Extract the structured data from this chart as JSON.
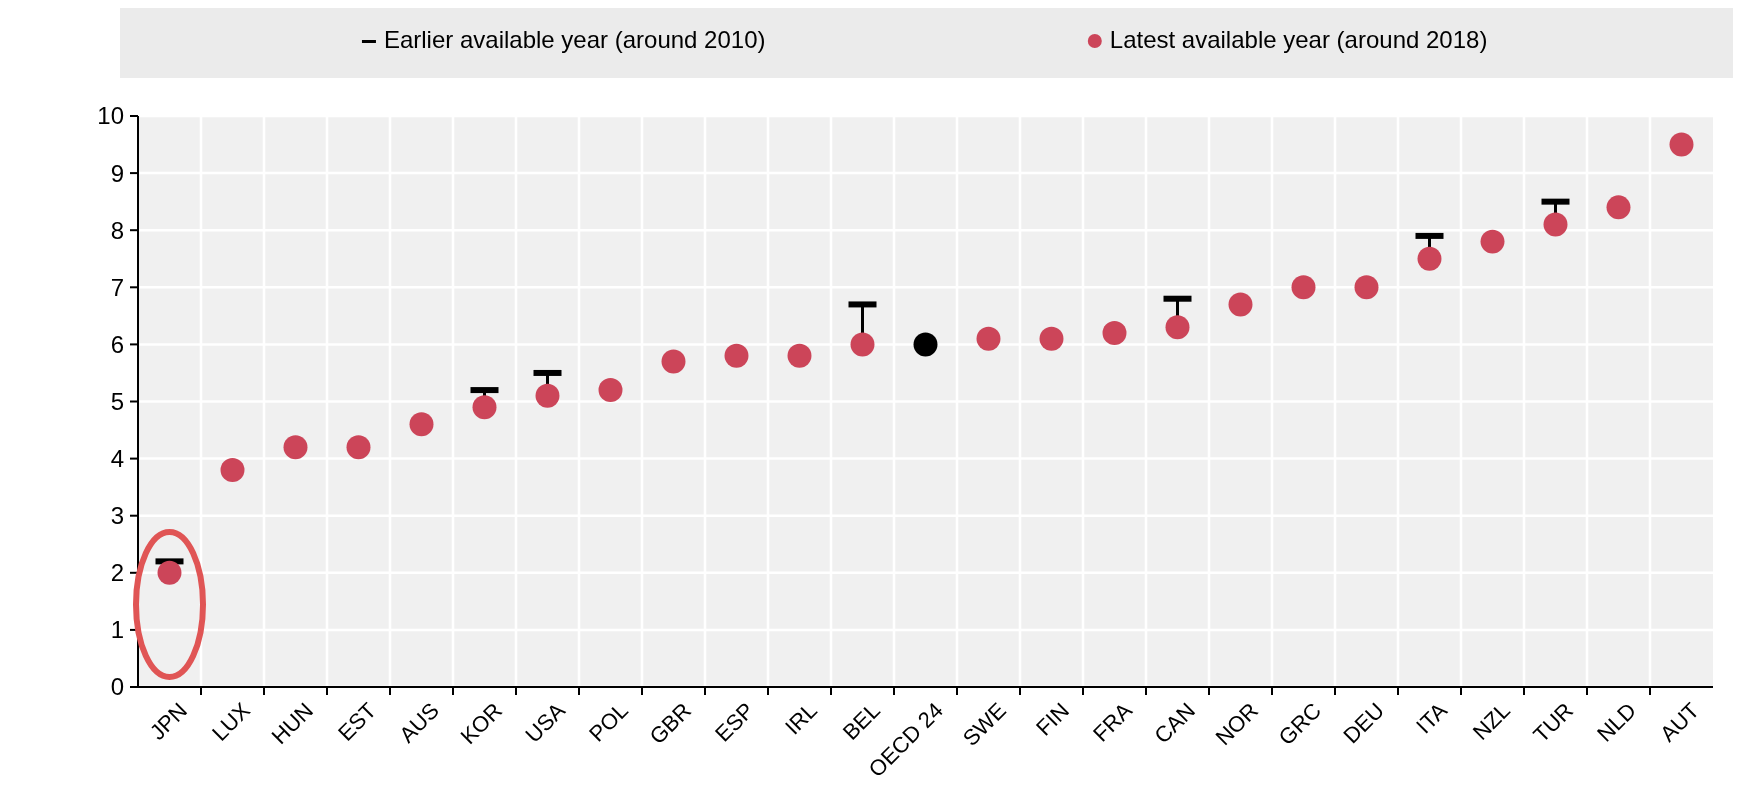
{
  "chart_data": {
    "type": "scatter",
    "categories": [
      "JPN",
      "LUX",
      "HUN",
      "EST",
      "AUS",
      "KOR",
      "USA",
      "POL",
      "GBR",
      "ESP",
      "IRL",
      "BEL",
      "OECD 24",
      "SWE",
      "FIN",
      "FRA",
      "CAN",
      "NOR",
      "GRC",
      "DEU",
      "ITA",
      "NZL",
      "TUR",
      "NLD",
      "AUT"
    ],
    "series": [
      {
        "name": "Latest available year (around 2018)",
        "color": "#cc4559",
        "marker": "circle",
        "colors": [
          "#cc4559",
          "#cc4559",
          "#cc4559",
          "#cc4559",
          "#cc4559",
          "#cc4559",
          "#cc4559",
          "#cc4559",
          "#cc4559",
          "#cc4559",
          "#cc4559",
          "#cc4559",
          "#000000",
          "#cc4559",
          "#cc4559",
          "#cc4559",
          "#cc4559",
          "#cc4559",
          "#cc4559",
          "#cc4559",
          "#cc4559",
          "#cc4559",
          "#cc4559",
          "#cc4559",
          "#cc4559"
        ],
        "values": [
          2.0,
          3.8,
          4.2,
          4.2,
          4.6,
          4.9,
          5.1,
          5.2,
          5.7,
          5.8,
          5.8,
          6.0,
          6.0,
          6.1,
          6.1,
          6.2,
          6.3,
          6.7,
          7.0,
          7.0,
          7.5,
          7.8,
          8.1,
          8.4,
          9.5
        ],
        "errors": [
          [
            2.0,
            2.2
          ],
          null,
          null,
          null,
          null,
          [
            4.9,
            5.2
          ],
          [
            5.1,
            5.5
          ],
          null,
          null,
          null,
          null,
          [
            6.0,
            6.7
          ],
          null,
          null,
          null,
          null,
          [
            6.3,
            6.8
          ],
          null,
          null,
          null,
          [
            7.5,
            7.9
          ],
          null,
          [
            8.1,
            8.5
          ],
          null,
          null
        ]
      }
    ],
    "annotations": [
      "Earlier available year (around 2010)"
    ],
    "ylim": [
      0,
      10
    ],
    "yticks": [
      0,
      1,
      2,
      3,
      4,
      5,
      6,
      7,
      8,
      9,
      10
    ],
    "grid": true,
    "legend": "top"
  }
}
